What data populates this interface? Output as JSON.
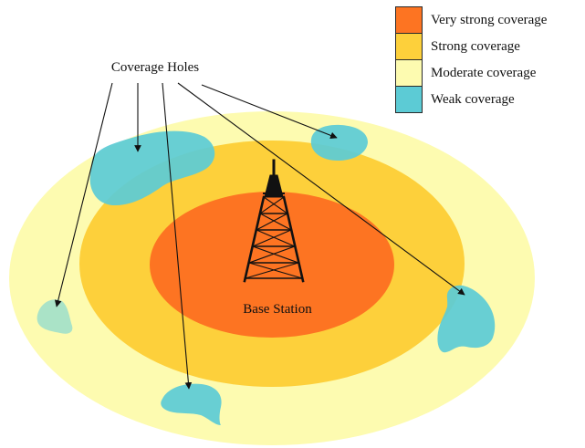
{
  "colors": {
    "very_strong": "#fd7422",
    "strong": "#fdd03b",
    "moderate": "#fdfbb0",
    "weak": "#5ccbd5",
    "weak_light": "#a5e1c8"
  },
  "legend": {
    "items": [
      {
        "label": "Very strong coverage",
        "color": "#fd7422"
      },
      {
        "label": "Strong coverage",
        "color": "#fdd03b"
      },
      {
        "label": "Moderate coverage",
        "color": "#fdfbb0"
      },
      {
        "label": "Weak coverage",
        "color": "#5ccbd5"
      }
    ]
  },
  "labels": {
    "coverage_holes": "Coverage Holes",
    "base_station": "Base Station"
  },
  "icons": {
    "tower": "cell-tower-icon"
  }
}
